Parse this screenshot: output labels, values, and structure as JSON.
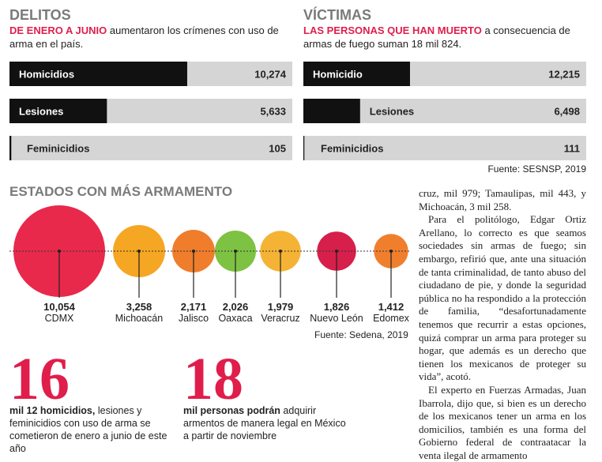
{
  "delitos": {
    "title": "DELITOS",
    "lead_highlight": "DE ENERO A JUNIO",
    "lead_text": " aumentaron los crímenes con uso de arma en el país.",
    "categories": [
      "Homicidios",
      "Lesiones",
      "Feminicidios"
    ],
    "values": [
      10274,
      5633,
      105
    ],
    "value_labels": [
      "10,274",
      "5,633",
      "105"
    ],
    "xlim": [
      0,
      16350
    ]
  },
  "victimas": {
    "title": "VÍCTIMAS",
    "lead_highlight": "LAS PERSONAS QUE HAN MUERTO",
    "lead_text": " a consecuencia de armas de fuego suman 18 mil 824.",
    "categories": [
      "Homicidio",
      "Lesiones",
      "Feminicidios"
    ],
    "values": [
      12215,
      6498,
      111
    ],
    "value_labels": [
      "12,215",
      "6,498",
      "111"
    ],
    "xlim": [
      0,
      32400
    ],
    "source": "Fuente: SESNSP, 2019"
  },
  "estados": {
    "title": "ESTADOS CON MÁS ARMAMENTO",
    "categories": [
      "CDMX",
      "Michoacán",
      "Jalisco",
      "Oaxaca",
      "Veracruz",
      "Nuevo León",
      "Edomex"
    ],
    "values": [
      10054,
      3258,
      2171,
      2026,
      1979,
      1826,
      1412
    ],
    "value_labels": [
      "10,054",
      "3,258",
      "2,171",
      "2,026",
      "1,979",
      "1,826",
      "1,412"
    ],
    "colors": [
      "#e8294c",
      "#f5a623",
      "#ef7d2c",
      "#7dc242",
      "#f5b335",
      "#d61f4a",
      "#f07f2d"
    ],
    "source": "Fuente: Sedena, 2019"
  },
  "stat1": {
    "number": "16",
    "bold": "mil 12 homicidios,",
    "text": " lesiones y feminicidios con uso de arma se cometieron de enero a junio de este año"
  },
  "stat2": {
    "number": "18",
    "bold": "mil personas podrán",
    "text": " adquirir armentos de manera legal en México a partir de noviembre"
  },
  "article": {
    "paragraphs": [
      "cruz, mil 979; Tamaulipas, mil 443, y Michoacán, 3 mil 258.",
      "Para el politólogo, Edgar Ortiz Arellano, lo correcto es que seamos sociedades sin armas de fuego; sin embargo, refirió que, ante una situación de tanta criminalidad, de tanto abuso del ciudadano de pie, y donde la seguridad pública no ha respondido a la protección de familia, “desafortunadamente tenemos que recurrir a estas opciones, quizá comprar un arma para proteger su hogar, que además es un derecho que tienen los mexicanos de proteger su vida”, acotó.",
      "El experto en Fuerzas Armadas, Juan Ibarrola, dijo que, si bien es un derecho de los mexicanos tener un arma en los domicilios, también es una forma del Gobierno federal de contraatacar la venta ilegal de armamento"
    ]
  }
}
